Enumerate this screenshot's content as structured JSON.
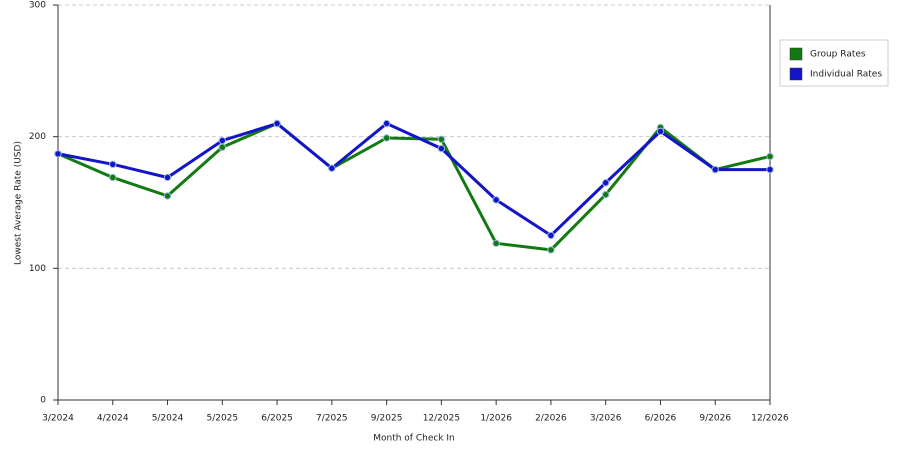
{
  "chart_data": {
    "type": "line",
    "x_label": "Month of Check In",
    "y_label": "Lowest Average Rate (USD)",
    "categories": [
      "3/2024",
      "4/2024",
      "5/2024",
      "5/2025",
      "6/2025",
      "7/2025",
      "9/2025",
      "12/2025",
      "1/2026",
      "2/2026",
      "3/2026",
      "6/2026",
      "9/2026",
      "12/2026"
    ],
    "series": [
      {
        "name": "Group Rates",
        "color": "#137a13",
        "values": [
          187,
          169,
          155,
          192,
          210,
          176,
          199,
          198,
          119,
          114,
          156,
          207,
          175,
          185
        ]
      },
      {
        "name": "Individual Rates",
        "color": "#1414c8",
        "values": [
          187,
          179,
          169,
          197,
          210,
          176,
          210,
          191,
          152,
          125,
          165,
          204,
          175,
          175
        ]
      }
    ],
    "ylim": [
      0,
      300
    ],
    "yticks": [
      0,
      100,
      200,
      300
    ],
    "grid": true,
    "legend": "right"
  }
}
